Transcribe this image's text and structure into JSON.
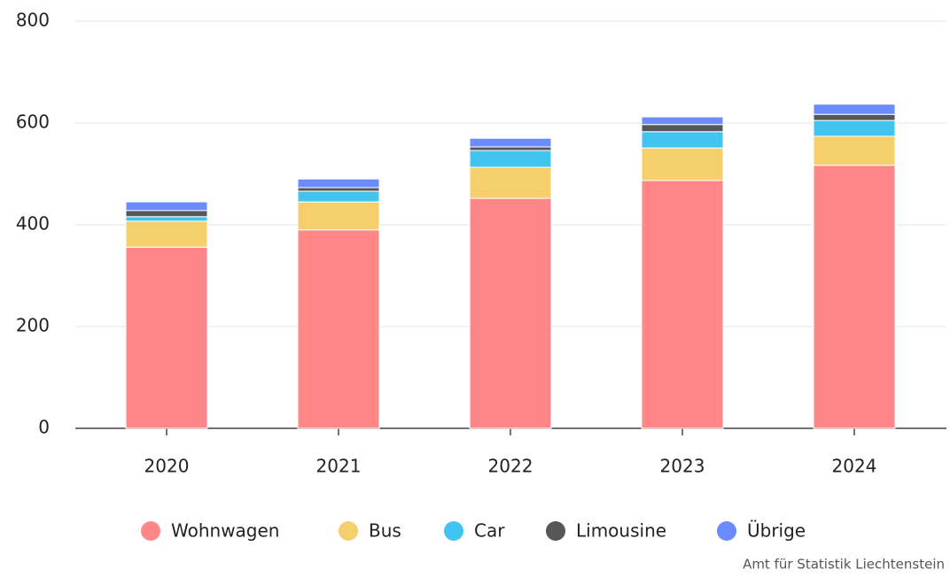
{
  "chart_data": {
    "type": "stacked_bar",
    "categories": [
      "2020",
      "2021",
      "2022",
      "2023",
      "2024"
    ],
    "series": [
      {
        "name": "Wohnwagen",
        "color": "#ff8787",
        "values": [
          356,
          390,
          452,
          487,
          517
        ]
      },
      {
        "name": "Bus",
        "color": "#f5cf6b",
        "values": [
          51,
          55,
          61,
          64,
          57
        ]
      },
      {
        "name": "Car",
        "color": "#41c4f0",
        "values": [
          9,
          21,
          33,
          32,
          31
        ]
      },
      {
        "name": "Limousine",
        "color": "#555759",
        "values": [
          12,
          7,
          7,
          14,
          12
        ]
      },
      {
        "name": "Übrige",
        "color": "#6b8cff",
        "values": [
          17,
          17,
          17,
          15,
          20
        ]
      }
    ],
    "ylim": [
      0,
      800
    ],
    "yticks": [
      0,
      200,
      400,
      600,
      800
    ],
    "grid": true,
    "legend": "bottom",
    "source": "Amt für Statistik Liechtenstein"
  }
}
